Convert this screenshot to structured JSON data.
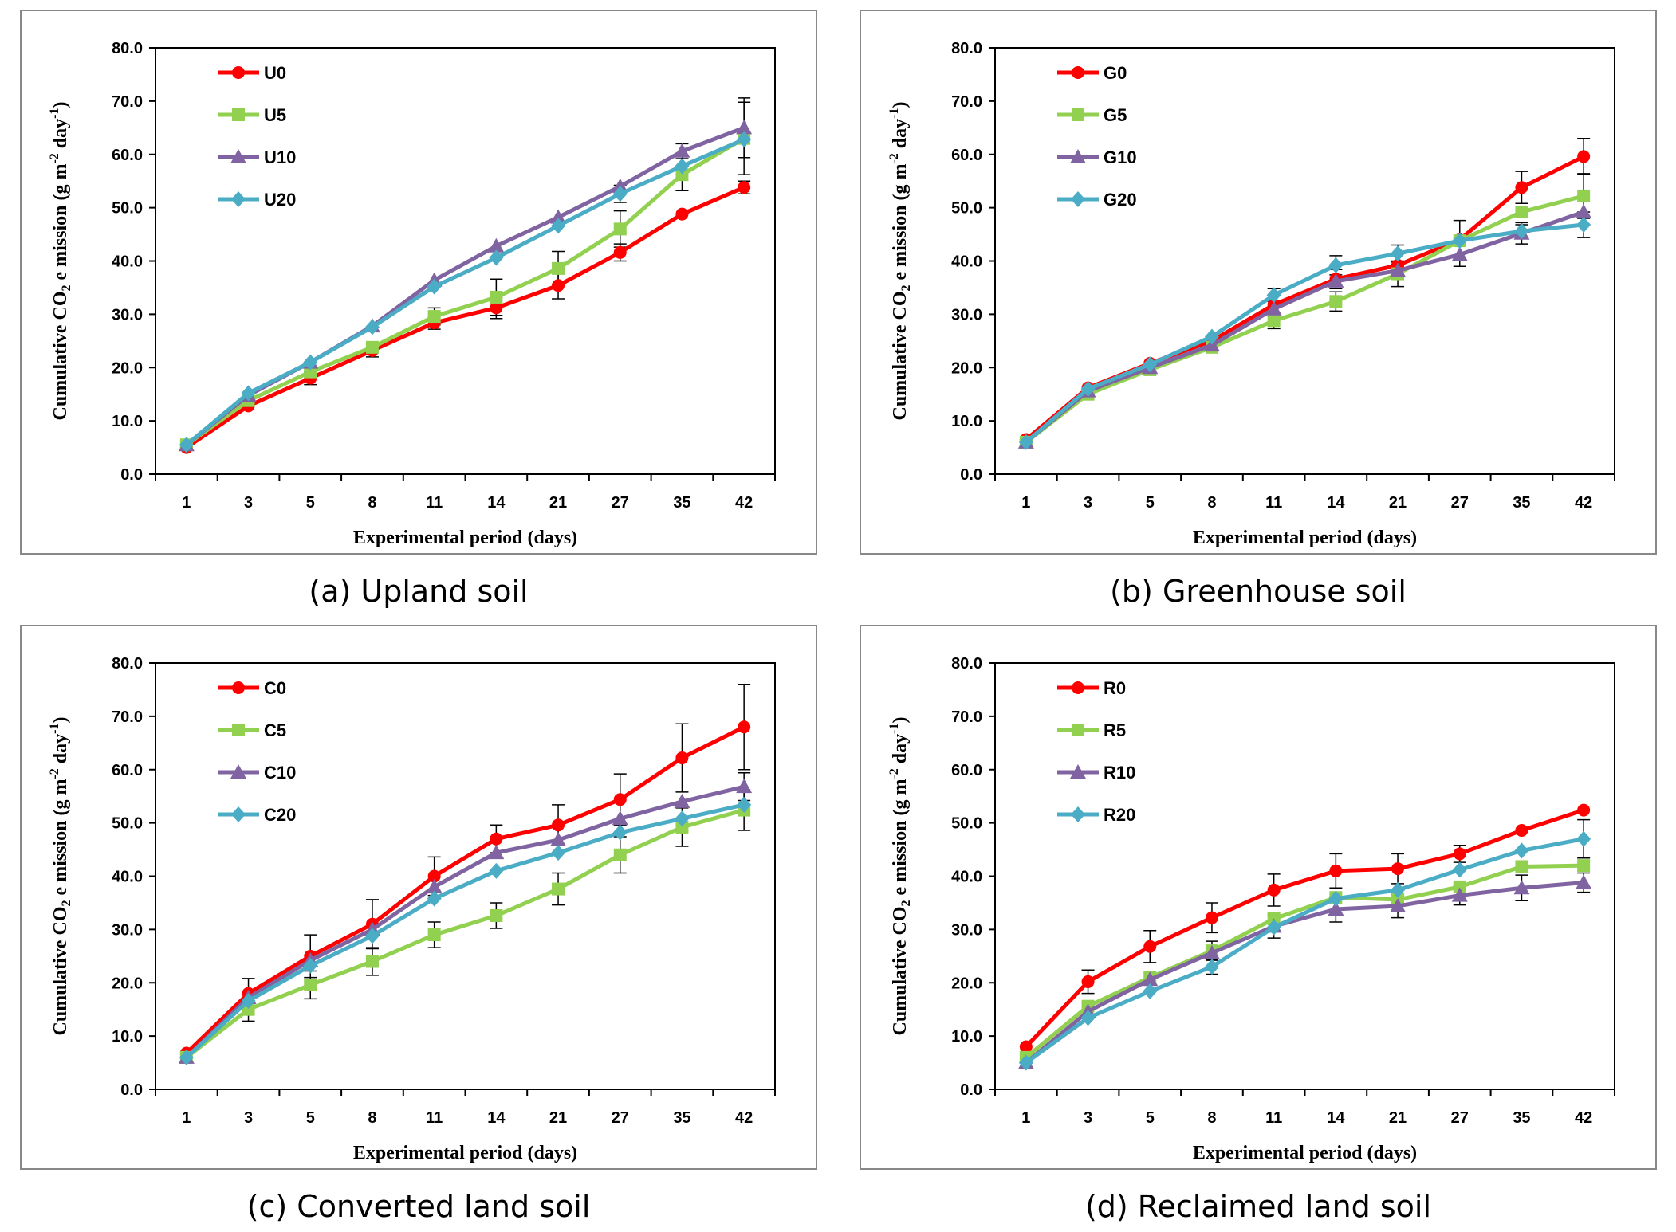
{
  "charts": [
    {
      "id": "a",
      "caption": "(a) Upland soil",
      "xlabel": "Experimental period (days)",
      "ylabel_main": "Cumulative CO",
      "ylabel_sub": "2",
      "ylabel_rest": " e mission (g m",
      "ylabel_sup1": "-2",
      "ylabel_mid": " day",
      "ylabel_sup2": "-1",
      "ylabel_end": ")"
    },
    {
      "id": "b",
      "caption": "(b) Greenhouse soil",
      "xlabel": "Experimental period (days)",
      "ylabel_main": "Cumulative CO",
      "ylabel_sub": "2",
      "ylabel_rest": " e mission (g m",
      "ylabel_sup1": "-2",
      "ylabel_mid": " day",
      "ylabel_sup2": "-1",
      "ylabel_end": ")"
    },
    {
      "id": "c",
      "caption": "(c) Converted land soil",
      "xlabel": "Experimental period (days)",
      "ylabel_main": "Cumulative CO",
      "ylabel_sub": "2",
      "ylabel_rest": " e mission (g m",
      "ylabel_sup1": "-2",
      "ylabel_mid": " day",
      "ylabel_sup2": "-1",
      "ylabel_end": ")"
    },
    {
      "id": "d",
      "caption": "(d) Reclaimed land soil",
      "xlabel": "Experimental period (days)",
      "ylabel_main": "Cumulative CO",
      "ylabel_sub": "2",
      "ylabel_rest": " e mission (g m",
      "ylabel_sup1": "-2",
      "ylabel_mid": " day",
      "ylabel_sup2": "-1",
      "ylabel_end": ")"
    }
  ],
  "chart_data": [
    {
      "type": "line",
      "title": "(a) Upland soil",
      "xlabel": "Experimental period (days)",
      "ylabel": "Cumulative CO2 e mission (g m-2 day-1)",
      "categories": [
        "1",
        "3",
        "5",
        "8",
        "11",
        "14",
        "21",
        "27",
        "35",
        "42"
      ],
      "ylim": [
        0,
        80
      ],
      "yticks": [
        "0.0",
        "10.0",
        "20.0",
        "30.0",
        "40.0",
        "50.0",
        "60.0",
        "70.0",
        "80.0"
      ],
      "legend_position": "top-left",
      "series": [
        {
          "name": "U0",
          "color": "#ff0000",
          "marker": "circle",
          "values": [
            5.0,
            12.8,
            18.0,
            23.2,
            28.4,
            31.2,
            35.4,
            41.6,
            48.8,
            53.8
          ],
          "errors": [
            0,
            0,
            1.2,
            1.2,
            1.2,
            2.0,
            2.5,
            1.6,
            0,
            1.2
          ]
        },
        {
          "name": "U5",
          "color": "#92d050",
          "marker": "square",
          "values": [
            5.5,
            13.8,
            19.2,
            23.8,
            29.6,
            33.2,
            38.6,
            46.0,
            56.2,
            63.0
          ],
          "errors": [
            0,
            0,
            0,
            0,
            1.6,
            3.4,
            3.2,
            3.4,
            3.0,
            6.8
          ]
        },
        {
          "name": "U10",
          "color": "#8064a2",
          "marker": "triangle",
          "values": [
            5.5,
            14.8,
            21.0,
            27.8,
            36.4,
            42.8,
            48.2,
            54.0,
            60.6,
            65.0
          ],
          "errors": [
            0,
            0,
            0,
            0,
            0,
            0,
            0,
            0,
            1.4,
            5.6
          ]
        },
        {
          "name": "U20",
          "color": "#4bacc6",
          "marker": "diamond",
          "values": [
            5.5,
            15.2,
            21.0,
            27.6,
            35.2,
            40.6,
            46.6,
            52.6,
            57.8,
            62.8
          ],
          "errors": [
            0,
            0,
            0,
            0,
            0,
            0,
            0,
            1.6,
            0,
            0
          ]
        }
      ]
    },
    {
      "type": "line",
      "title": "(b) Greenhouse soil",
      "xlabel": "Experimental period (days)",
      "ylabel": "Cumulative CO2 e mission (g m-2 day-1)",
      "categories": [
        "1",
        "3",
        "5",
        "8",
        "11",
        "14",
        "21",
        "27",
        "35",
        "42"
      ],
      "ylim": [
        0,
        80
      ],
      "yticks": [
        "0.0",
        "10.0",
        "20.0",
        "30.0",
        "40.0",
        "50.0",
        "60.0",
        "70.0",
        "80.0"
      ],
      "legend_position": "top-left",
      "series": [
        {
          "name": "G0",
          "color": "#ff0000",
          "marker": "circle",
          "values": [
            6.5,
            16.2,
            20.8,
            25.0,
            31.8,
            36.6,
            39.2,
            44.0,
            53.8,
            59.6
          ],
          "errors": [
            0,
            0,
            0,
            0,
            0,
            1.8,
            2.2,
            3.6,
            3.0,
            3.4
          ]
        },
        {
          "name": "G5",
          "color": "#92d050",
          "marker": "square",
          "values": [
            6.0,
            15.0,
            19.6,
            23.8,
            28.8,
            32.4,
            37.6,
            43.8,
            49.2,
            52.2
          ],
          "errors": [
            0,
            0,
            0,
            0,
            1.5,
            1.8,
            2.4,
            0,
            0,
            4.2
          ]
        },
        {
          "name": "G10",
          "color": "#8064a2",
          "marker": "triangle",
          "values": [
            6.0,
            15.6,
            20.0,
            24.2,
            31.0,
            36.2,
            38.2,
            41.2,
            45.2,
            49.2
          ],
          "errors": [
            0,
            0,
            0,
            0,
            0,
            0,
            1.2,
            2.2,
            2.0,
            0
          ]
        },
        {
          "name": "G20",
          "color": "#4bacc6",
          "marker": "diamond",
          "values": [
            6.0,
            16.0,
            20.6,
            25.8,
            33.6,
            39.2,
            41.4,
            43.8,
            45.6,
            46.8
          ],
          "errors": [
            0,
            0,
            0,
            0,
            1.2,
            1.8,
            1.6,
            0,
            1.2,
            2.4
          ]
        }
      ]
    },
    {
      "type": "line",
      "title": "(c) Converted land soil",
      "xlabel": "Experimental period (days)",
      "ylabel": "Cumulative CO2 e mission (g m-2 day-1)",
      "categories": [
        "1",
        "3",
        "5",
        "8",
        "11",
        "14",
        "21",
        "27",
        "35",
        "42"
      ],
      "ylim": [
        0,
        80
      ],
      "yticks": [
        "0.0",
        "10.0",
        "20.0",
        "30.0",
        "40.0",
        "50.0",
        "60.0",
        "70.0",
        "80.0"
      ],
      "legend_position": "top-left",
      "series": [
        {
          "name": "C0",
          "color": "#ff0000",
          "marker": "circle",
          "values": [
            6.8,
            18.0,
            25.0,
            31.0,
            40.0,
            47.0,
            49.6,
            54.4,
            62.2,
            68.0
          ],
          "errors": [
            0,
            2.8,
            4.0,
            4.6,
            3.6,
            2.6,
            3.8,
            4.8,
            6.4,
            8.0
          ]
        },
        {
          "name": "C5",
          "color": "#92d050",
          "marker": "square",
          "values": [
            6.0,
            15.0,
            19.6,
            24.0,
            29.0,
            32.6,
            37.6,
            44.0,
            49.2,
            52.4
          ],
          "errors": [
            0,
            2.2,
            2.6,
            2.6,
            2.4,
            2.4,
            3.0,
            3.4,
            3.6,
            3.8
          ]
        },
        {
          "name": "C10",
          "color": "#8064a2",
          "marker": "triangle",
          "values": [
            6.0,
            17.2,
            24.2,
            30.0,
            38.0,
            44.4,
            46.8,
            50.8,
            54.0,
            56.8
          ],
          "errors": [
            0,
            0,
            0,
            0,
            0,
            0,
            0,
            0,
            0,
            2.6
          ]
        },
        {
          "name": "C20",
          "color": "#4bacc6",
          "marker": "diamond",
          "values": [
            6.0,
            16.6,
            23.2,
            28.8,
            35.8,
            41.0,
            44.4,
            48.2,
            50.8,
            53.4
          ],
          "errors": [
            0,
            0,
            0,
            0,
            0,
            0,
            0,
            0,
            0,
            0
          ]
        }
      ]
    },
    {
      "type": "line",
      "title": "(d) Reclaimed land soil",
      "xlabel": "Experimental period (days)",
      "ylabel": "Cumulative CO2 e mission (g m-2 day-1)",
      "categories": [
        "1",
        "3",
        "5",
        "8",
        "11",
        "14",
        "21",
        "27",
        "35",
        "42"
      ],
      "ylim": [
        0,
        80
      ],
      "yticks": [
        "0.0",
        "10.0",
        "20.0",
        "30.0",
        "40.0",
        "50.0",
        "60.0",
        "70.0",
        "80.0"
      ],
      "legend_position": "top-left",
      "series": [
        {
          "name": "R0",
          "color": "#ff0000",
          "marker": "circle",
          "values": [
            8.0,
            20.2,
            26.8,
            32.2,
            37.4,
            41.0,
            41.4,
            44.2,
            48.6,
            52.4
          ],
          "errors": [
            0,
            2.2,
            3.0,
            2.8,
            3.0,
            3.2,
            2.8,
            1.6,
            0,
            0
          ]
        },
        {
          "name": "R5",
          "color": "#92d050",
          "marker": "square",
          "values": [
            6.0,
            15.6,
            21.0,
            26.0,
            32.0,
            36.0,
            35.6,
            38.0,
            41.8,
            42.0
          ],
          "errors": [
            0,
            0,
            0,
            1.8,
            0,
            0,
            0,
            0,
            0,
            0
          ]
        },
        {
          "name": "R10",
          "color": "#8064a2",
          "marker": "triangle",
          "values": [
            5.0,
            14.6,
            20.6,
            25.6,
            30.6,
            33.8,
            34.4,
            36.4,
            37.8,
            38.8
          ],
          "errors": [
            0,
            0,
            0,
            0,
            2.2,
            2.4,
            2.2,
            1.8,
            2.4,
            1.8
          ]
        },
        {
          "name": "R20",
          "color": "#4bacc6",
          "marker": "diamond",
          "values": [
            5.0,
            13.4,
            18.4,
            23.0,
            30.4,
            35.8,
            37.4,
            41.2,
            44.8,
            47.0
          ],
          "errors": [
            0,
            0,
            0,
            1.4,
            0,
            0,
            0,
            0,
            0,
            3.6
          ]
        }
      ]
    }
  ]
}
